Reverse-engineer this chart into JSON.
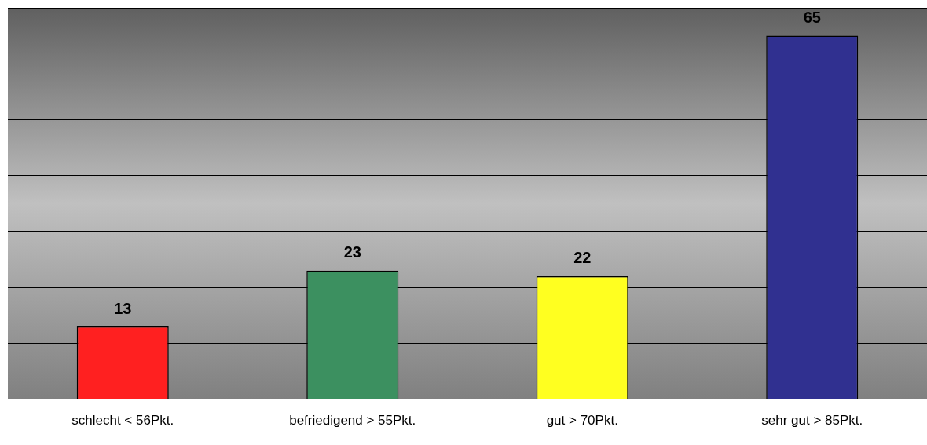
{
  "chart_data": {
    "type": "bar",
    "categories": [
      "schlecht < 56Pkt.",
      "befriedigend > 55Pkt.",
      "gut > 70Pkt.",
      "sehr gut > 85Pkt."
    ],
    "values": [
      13,
      23,
      22,
      65
    ],
    "colors": [
      "#ff2020",
      "#3c9060",
      "#ffff20",
      "#303090"
    ],
    "ylim": [
      0,
      70
    ],
    "yticks": [
      {
        "value": 0,
        "label": null
      },
      {
        "value": 10,
        "label": null
      },
      {
        "value": 20,
        "label": null
      },
      {
        "value": 30,
        "label": null
      },
      {
        "value": 40,
        "label": null
      },
      {
        "value": 50,
        "label": null
      },
      {
        "value": 60,
        "label": null
      },
      {
        "value": 70,
        "label": null
      }
    ],
    "grid": "y",
    "tick_labels": "x",
    "data_labels": true,
    "legend": false
  }
}
